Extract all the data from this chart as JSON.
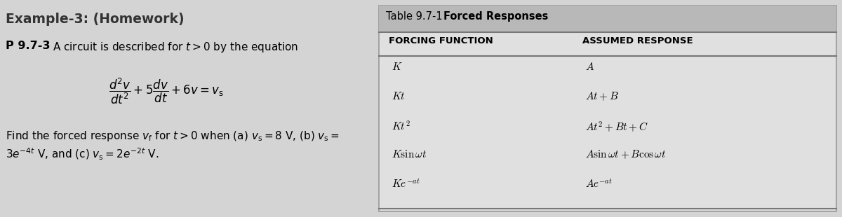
{
  "title": "Example-3: (Homework)",
  "bg_color": "#d4d4d4",
  "right_panel_bg": "#e0e0e0",
  "table_header_bg": "#b8b8b8",
  "table_title_normal": "Table 9.7-1  ",
  "table_title_bold": "Forced Responses",
  "col1_header": "FORCING FUNCTION",
  "col2_header": "ASSUMED RESPONSE",
  "rows_ff": [
    "$K$",
    "$Kt$",
    "$Kt^2$",
    "$K\\sin\\omega t$",
    "$Ke^{-at}$"
  ],
  "rows_ar": [
    "$A$",
    "$At+B$",
    "$At^2+Bt+C$",
    "$A\\sin\\omega t+B\\cos\\omega t$",
    "$Ae^{-at}$"
  ],
  "problem_label": "P 9.7-3",
  "problem_text": "A circuit is described for $t > 0$ by the equation",
  "equation": "$\\dfrac{d^2v}{dt^2}+5\\dfrac{dv}{dt}+6v=v_{\\mathrm{s}}$",
  "find_text1": "Find the forced response $v_{\\mathrm{f}}$ for $t>0$ when (a) $v_{\\mathrm{s}}=8$ V, (b) $v_{\\mathrm{s}}=$",
  "find_text2": "$3e^{-4t}$ V, and (c) $v_{\\mathrm{s}}=2e^{-2t}$ V."
}
